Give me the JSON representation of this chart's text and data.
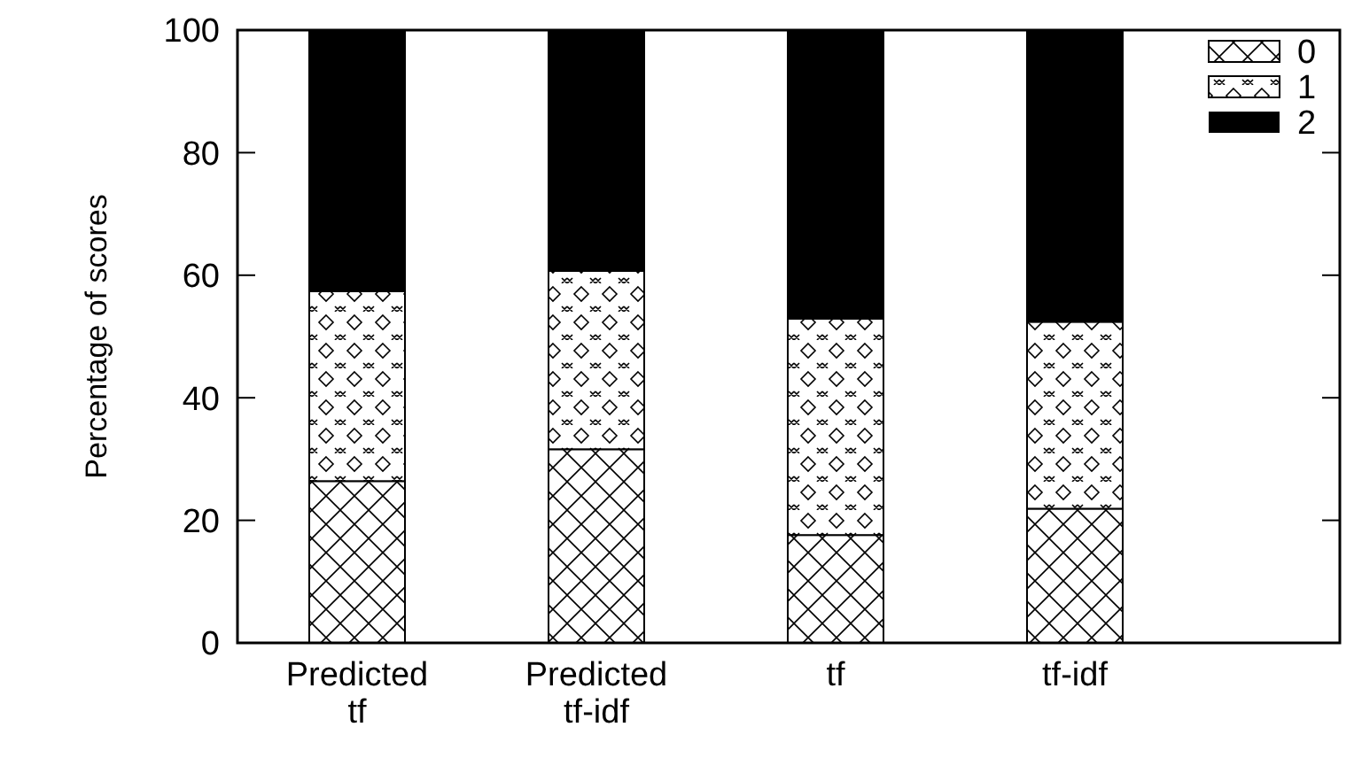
{
  "chart_data": {
    "type": "bar",
    "ylabel": "Percentage of scores",
    "categories": [
      "Predicted tf",
      "Predicted tf-idf",
      "tf",
      "tf-idf"
    ],
    "stacked": true,
    "ylim": [
      0,
      100
    ],
    "yticks": [
      0,
      20,
      40,
      60,
      80,
      100
    ],
    "legend": "top right",
    "series": [
      {
        "name": "0",
        "color": "#ffffff",
        "values": [
          26.4,
          31.6,
          17.6,
          21.9
        ]
      },
      {
        "name": "1",
        "color": "#ffffff",
        "values": [
          31.0,
          29.1,
          35.3,
          30.5
        ]
      },
      {
        "name": "2",
        "color": "#000000",
        "values": [
          42.6,
          39.3,
          47.1,
          47.6
        ]
      }
    ]
  }
}
